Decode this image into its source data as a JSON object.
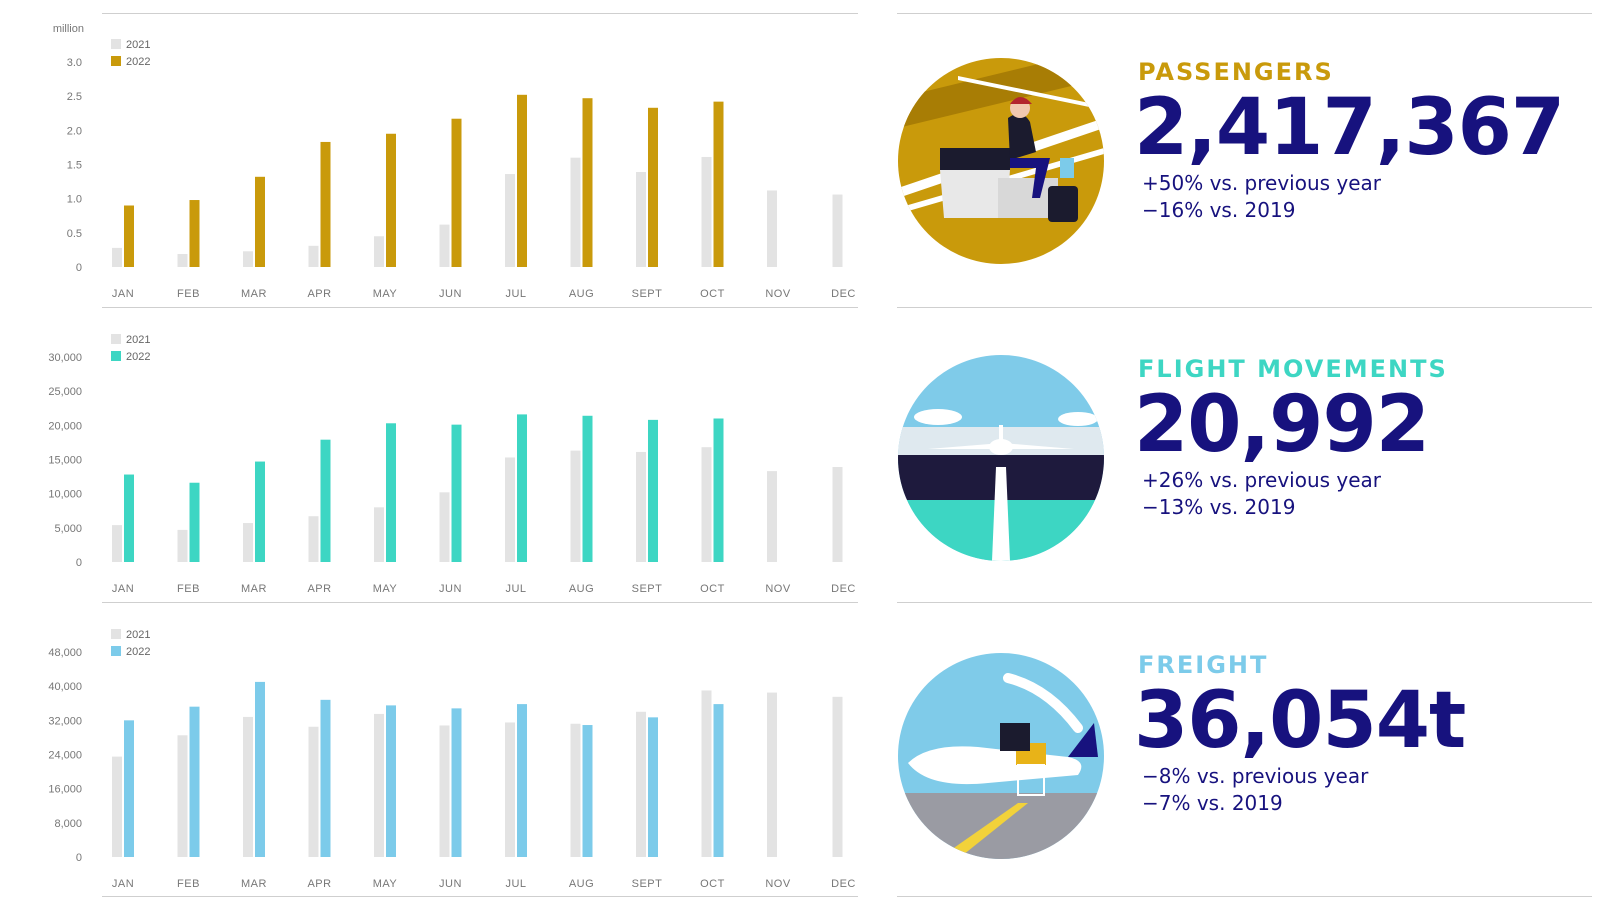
{
  "months": [
    "JAN",
    "FEB",
    "MAR",
    "APR",
    "MAY",
    "JUN",
    "JUL",
    "AUG",
    "SEPT",
    "OCT",
    "NOV",
    "DEC"
  ],
  "colors": {
    "prior": "#e3e3e3",
    "passengers": "#c99a0b",
    "flights": "#3dd6c3",
    "freight": "#7ccbea",
    "navy": "#17127e"
  },
  "chart_data": [
    {
      "type": "bar",
      "unit_label": "million",
      "legend": [
        "2021",
        "2022"
      ],
      "categories": [
        "JAN",
        "FEB",
        "MAR",
        "APR",
        "MAY",
        "JUN",
        "JUL",
        "AUG",
        "SEPT",
        "OCT",
        "NOV",
        "DEC"
      ],
      "yticks": [
        "0",
        "0.5",
        "1.0",
        "1.5",
        "2.0",
        "2.5",
        "3.0"
      ],
      "ylim": [
        0,
        3.0
      ],
      "series": [
        {
          "name": "2021",
          "values": [
            0.28,
            0.19,
            0.23,
            0.31,
            0.45,
            0.62,
            1.36,
            1.6,
            1.39,
            1.61,
            1.12,
            1.06
          ]
        },
        {
          "name": "2022",
          "values": [
            0.9,
            0.98,
            1.32,
            1.83,
            1.95,
            2.17,
            2.52,
            2.47,
            2.33,
            2.42,
            null,
            null
          ]
        }
      ]
    },
    {
      "type": "bar",
      "unit_label": "",
      "legend": [
        "2021",
        "2022"
      ],
      "categories": [
        "JAN",
        "FEB",
        "MAR",
        "APR",
        "MAY",
        "JUN",
        "JUL",
        "AUG",
        "SEPT",
        "OCT",
        "NOV",
        "DEC"
      ],
      "yticks": [
        "0",
        "5,000",
        "10,000",
        "15,000",
        "20,000",
        "25,000",
        "30,000"
      ],
      "ylim": [
        0,
        30000
      ],
      "series": [
        {
          "name": "2021",
          "values": [
            5400,
            4700,
            5700,
            6700,
            8000,
            10200,
            15300,
            16300,
            16100,
            16800,
            13300,
            13900
          ]
        },
        {
          "name": "2022",
          "values": [
            12800,
            11600,
            14700,
            17900,
            20300,
            20100,
            21600,
            21400,
            20800,
            21000,
            null,
            null
          ]
        }
      ]
    },
    {
      "type": "bar",
      "unit_label": "",
      "legend": [
        "2021",
        "2022"
      ],
      "categories": [
        "JAN",
        "FEB",
        "MAR",
        "APR",
        "MAY",
        "JUN",
        "JUL",
        "AUG",
        "SEPT",
        "OCT",
        "NOV",
        "DEC"
      ],
      "yticks": [
        "0",
        "8,000",
        "16,000",
        "24,000",
        "32,000",
        "40,000",
        "48,000"
      ],
      "ylim": [
        0,
        48000
      ],
      "series": [
        {
          "name": "2021",
          "values": [
            23500,
            28500,
            32800,
            30500,
            33500,
            30800,
            31500,
            31200,
            34000,
            39000,
            38500,
            37500
          ]
        },
        {
          "name": "2022",
          "values": [
            32000,
            35200,
            41000,
            36800,
            35500,
            34800,
            35800,
            30900,
            32700,
            35800,
            null,
            null
          ]
        }
      ]
    }
  ],
  "stats": [
    {
      "title": "PASSENGERS",
      "value": "2,417,367",
      "line1": "+50% vs. previous year",
      "line2": "−16% vs. 2019"
    },
    {
      "title": "FLIGHT MOVEMENTS",
      "value": "20,992",
      "line1": "+26% vs. previous year",
      "line2": "−13% vs. 2019"
    },
    {
      "title": "FREIGHT",
      "value": "36,054t",
      "line1": "−8% vs. previous year",
      "line2": "−7% vs. 2019"
    }
  ],
  "illustrations": [
    "passenger-lounge-illustration",
    "runway-aircraft-illustration",
    "cargo-loading-illustration"
  ]
}
